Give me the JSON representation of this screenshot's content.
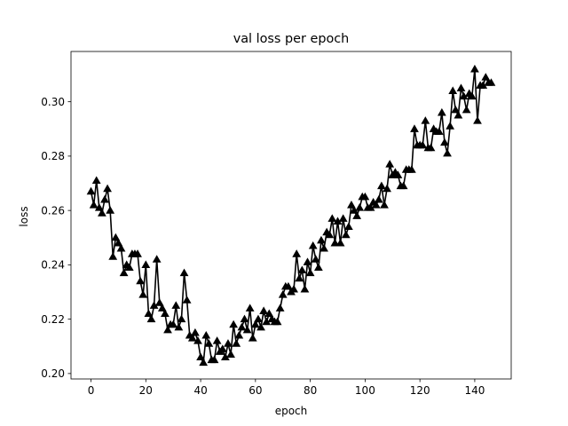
{
  "chart_data": {
    "type": "line",
    "title": "val loss per epoch",
    "xlabel": "epoch",
    "ylabel": "loss",
    "xlim": [
      -7.3,
      153.3
    ],
    "ylim": [
      0.198,
      0.3185
    ],
    "xticks": [
      0,
      20,
      40,
      60,
      80,
      100,
      120,
      140
    ],
    "yticks": [
      0.2,
      0.22,
      0.24,
      0.26,
      0.28,
      0.3
    ],
    "xtick_labels": [
      "0",
      "20",
      "40",
      "60",
      "80",
      "100",
      "120",
      "140"
    ],
    "ytick_labels": [
      "0.20",
      "0.22",
      "0.24",
      "0.26",
      "0.28",
      "0.30"
    ],
    "grid": false,
    "series": [
      {
        "color": "#000000",
        "marker": "triangle-up",
        "x": [
          0,
          1,
          2,
          3,
          4,
          5,
          6,
          7,
          8,
          9,
          10,
          11,
          12,
          13,
          14,
          15,
          16,
          17,
          18,
          19,
          20,
          21,
          22,
          23,
          24,
          25,
          26,
          27,
          28,
          29,
          30,
          31,
          32,
          33,
          34,
          35,
          36,
          37,
          38,
          39,
          40,
          41,
          42,
          43,
          44,
          45,
          46,
          47,
          48,
          49,
          50,
          51,
          52,
          53,
          54,
          55,
          56,
          57,
          58,
          59,
          60,
          61,
          62,
          63,
          64,
          65,
          66,
          67,
          68,
          69,
          70,
          71,
          72,
          73,
          74,
          75,
          76,
          77,
          78,
          79,
          80,
          81,
          82,
          83,
          84,
          85,
          86,
          87,
          88,
          89,
          90,
          91,
          92,
          93,
          94,
          95,
          96,
          97,
          98,
          99,
          100,
          101,
          102,
          103,
          104,
          105,
          106,
          107,
          108,
          109,
          110,
          111,
          112,
          113,
          114,
          115,
          116,
          117,
          118,
          119,
          120,
          121,
          122,
          123,
          124,
          125,
          126,
          127,
          128,
          129,
          130,
          131,
          132,
          133,
          134,
          135,
          136,
          137,
          138,
          139,
          140,
          141,
          142,
          143,
          144,
          145,
          146
        ],
        "y": [
          0.267,
          0.262,
          0.271,
          0.261,
          0.259,
          0.264,
          0.268,
          0.26,
          0.243,
          0.25,
          0.248,
          0.246,
          0.237,
          0.24,
          0.239,
          0.244,
          0.244,
          0.244,
          0.234,
          0.229,
          0.24,
          0.222,
          0.22,
          0.225,
          0.242,
          0.226,
          0.224,
          0.222,
          0.216,
          0.218,
          0.218,
          0.225,
          0.217,
          0.22,
          0.237,
          0.227,
          0.214,
          0.213,
          0.215,
          0.212,
          0.206,
          0.204,
          0.214,
          0.211,
          0.205,
          0.205,
          0.212,
          0.208,
          0.209,
          0.206,
          0.211,
          0.207,
          0.218,
          0.211,
          0.214,
          0.217,
          0.22,
          0.216,
          0.224,
          0.213,
          0.218,
          0.22,
          0.217,
          0.223,
          0.219,
          0.222,
          0.22,
          0.219,
          0.219,
          0.224,
          0.229,
          0.232,
          0.232,
          0.23,
          0.231,
          0.244,
          0.235,
          0.238,
          0.231,
          0.241,
          0.237,
          0.247,
          0.242,
          0.239,
          0.249,
          0.246,
          0.252,
          0.251,
          0.257,
          0.248,
          0.256,
          0.248,
          0.257,
          0.251,
          0.254,
          0.262,
          0.26,
          0.258,
          0.261,
          0.265,
          0.265,
          0.261,
          0.261,
          0.263,
          0.262,
          0.264,
          0.269,
          0.262,
          0.268,
          0.277,
          0.273,
          0.274,
          0.273,
          0.269,
          0.269,
          0.275,
          0.275,
          0.275,
          0.29,
          0.284,
          0.284,
          0.284,
          0.293,
          0.283,
          0.283,
          0.29,
          0.289,
          0.289,
          0.296,
          0.285,
          0.281,
          0.291,
          0.304,
          0.297,
          0.295,
          0.305,
          0.302,
          0.297,
          0.303,
          0.302,
          0.312,
          0.293,
          0.306,
          0.306,
          0.309,
          0.307,
          0.307
        ]
      }
    ]
  }
}
